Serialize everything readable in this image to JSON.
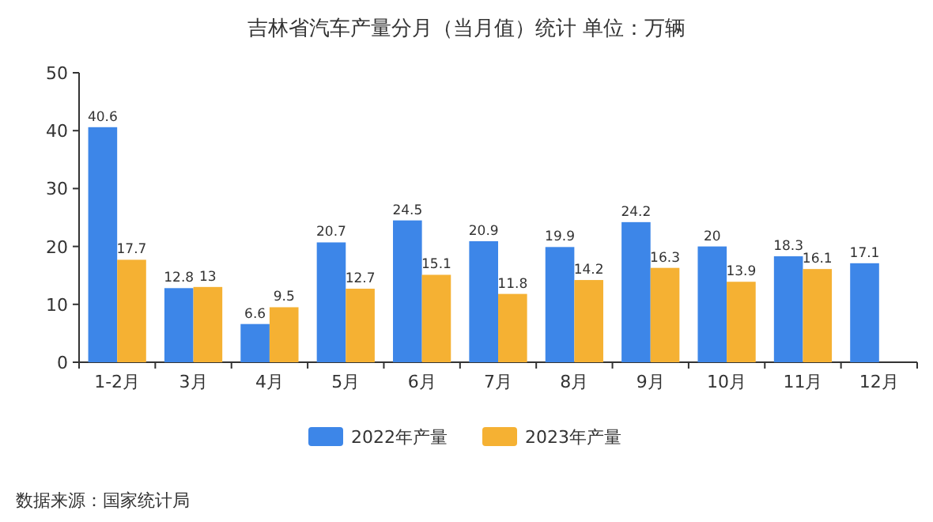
{
  "chart_data": {
    "type": "bar",
    "title": "吉林省汽车产量分月（当月值）统计 单位：万辆",
    "categories": [
      "1-2月",
      "3月",
      "4月",
      "5月",
      "6月",
      "7月",
      "8月",
      "9月",
      "10月",
      "11月",
      "12月"
    ],
    "series": [
      {
        "name": "2022年产量",
        "color": "#3d86e8",
        "values": [
          40.6,
          12.8,
          6.6,
          20.7,
          24.5,
          20.9,
          19.9,
          24.2,
          20,
          18.3,
          17.1
        ]
      },
      {
        "name": "2023年产量",
        "color": "#f5b133",
        "values": [
          17.7,
          13,
          9.5,
          12.7,
          15.1,
          11.8,
          14.2,
          16.3,
          13.9,
          16.1,
          null
        ]
      }
    ],
    "ylim": [
      0,
      50
    ],
    "yticks": [
      0,
      10,
      20,
      30,
      40,
      50
    ],
    "data_labels": true,
    "legend": "bottom",
    "grid": false,
    "annotations": [
      "数据来源：国家统计局"
    ]
  }
}
